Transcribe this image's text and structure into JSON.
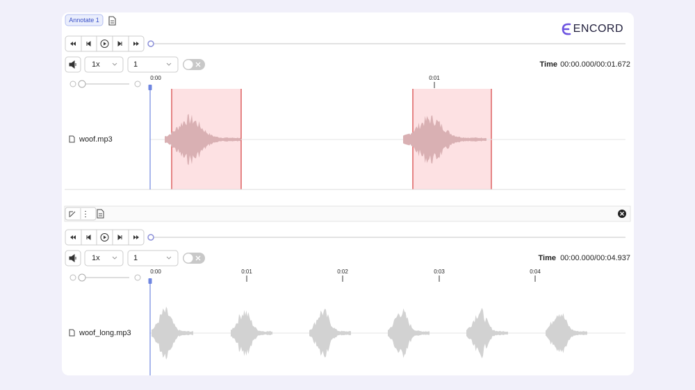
{
  "header": {
    "tab": "Annotate 1",
    "logo": "ENCORD"
  },
  "players": [
    {
      "speed": "1x",
      "layer": "1",
      "time_label": "Time",
      "time": "00:00.000/00:01.672",
      "ticks": [
        "0:00",
        "0:01"
      ],
      "track": "woof.mp3"
    },
    {
      "speed": "1x",
      "layer": "1",
      "time_label": "Time",
      "time": "00:00.000/00:04.937",
      "ticks": [
        "0:00",
        "0:01",
        "0:02",
        "0:03",
        "0:04"
      ],
      "track": "woof_long.mp3"
    }
  ]
}
